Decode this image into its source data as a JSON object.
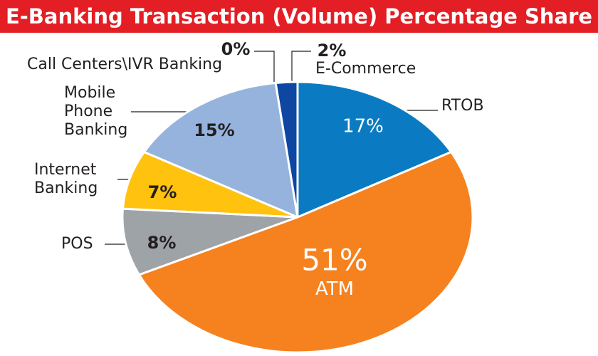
{
  "chart_data": {
    "type": "pie",
    "title": "E-Banking Transaction (Volume) Percentage Share",
    "categories": [
      "RTOB",
      "ATM",
      "POS",
      "Internet Banking",
      "Mobile Phone Banking",
      "Call Centers\\IVR Banking",
      "E-Commerce"
    ],
    "values": [
      17,
      51,
      8,
      7,
      15,
      0,
      2
    ],
    "value_labels": [
      "17%",
      "51%",
      "8%",
      "7%",
      "15%",
      "0%",
      "2%"
    ],
    "colors": [
      "#0a7bc2",
      "#f5821f",
      "#9ea3a8",
      "#ffc20e",
      "#95b3dc",
      "#ffffff",
      "#0d47a1"
    ]
  }
}
